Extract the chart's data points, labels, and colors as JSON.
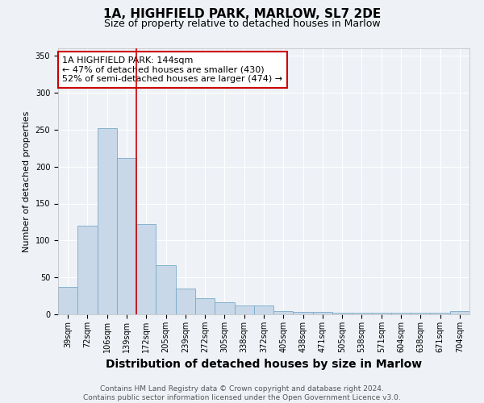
{
  "title": "1A, HIGHFIELD PARK, MARLOW, SL7 2DE",
  "subtitle": "Size of property relative to detached houses in Marlow",
  "xlabel": "Distribution of detached houses by size in Marlow",
  "ylabel": "Number of detached properties",
  "categories": [
    "39sqm",
    "72sqm",
    "106sqm",
    "139sqm",
    "172sqm",
    "205sqm",
    "239sqm",
    "272sqm",
    "305sqm",
    "338sqm",
    "372sqm",
    "405sqm",
    "438sqm",
    "471sqm",
    "505sqm",
    "538sqm",
    "571sqm",
    "604sqm",
    "638sqm",
    "671sqm",
    "704sqm"
  ],
  "values": [
    37,
    120,
    252,
    212,
    122,
    67,
    35,
    22,
    16,
    12,
    12,
    4,
    3,
    3,
    2,
    2,
    2,
    2,
    2,
    2,
    4
  ],
  "bar_color": "#c8d8e8",
  "bar_edge_color": "#7aaac8",
  "vline_x_index": 3.5,
  "vline_color": "#cc0000",
  "annotation_text": "1A HIGHFIELD PARK: 144sqm\n← 47% of detached houses are smaller (430)\n52% of semi-detached houses are larger (474) →",
  "annotation_box_color": "#ffffff",
  "annotation_box_edge_color": "#cc0000",
  "ylim": [
    0,
    360
  ],
  "yticks": [
    0,
    50,
    100,
    150,
    200,
    250,
    300,
    350
  ],
  "footer_line1": "Contains HM Land Registry data © Crown copyright and database right 2024.",
  "footer_line2": "Contains public sector information licensed under the Open Government Licence v3.0.",
  "background_color": "#eef2f7",
  "grid_color": "#ffffff",
  "title_fontsize": 11,
  "subtitle_fontsize": 9,
  "xlabel_fontsize": 10,
  "ylabel_fontsize": 8,
  "tick_fontsize": 7,
  "footer_fontsize": 6.5,
  "annotation_fontsize": 8
}
